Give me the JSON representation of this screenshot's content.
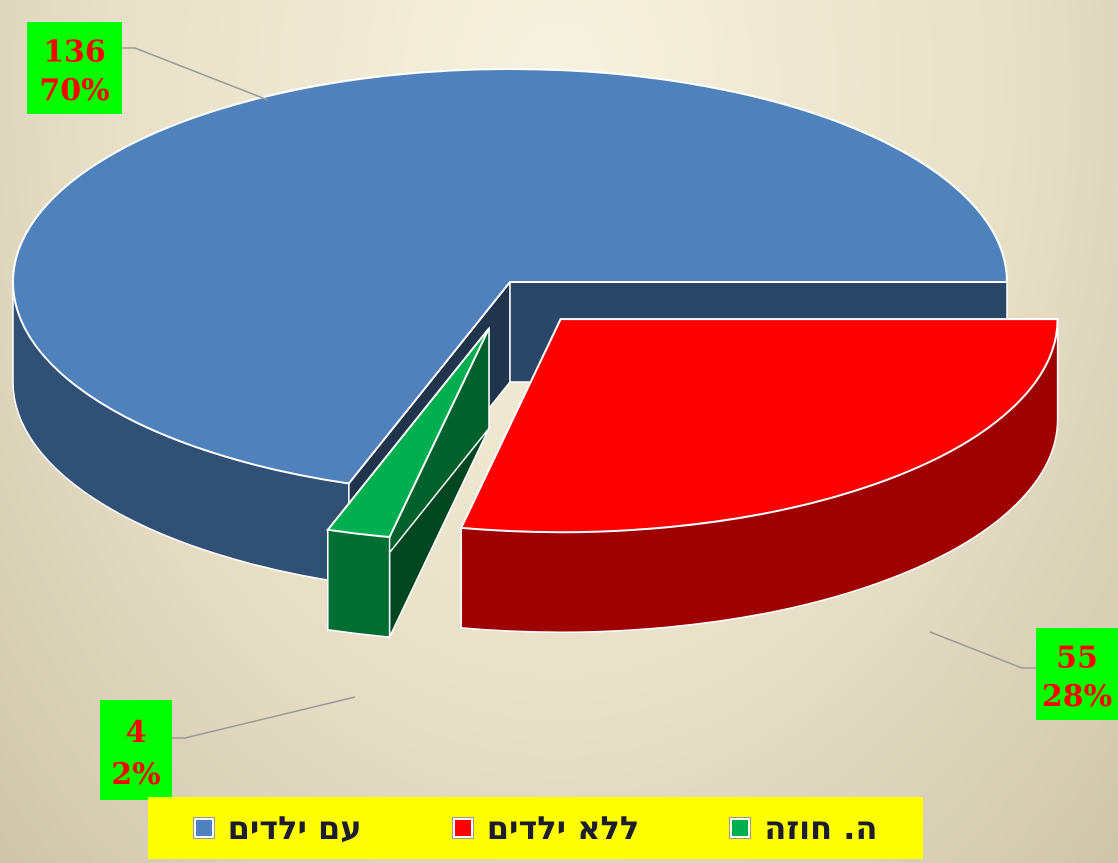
{
  "chart_data": {
    "type": "pie3d",
    "categories": [
      "עם ילדים",
      "ללא ילדים",
      "ה. חוזה"
    ],
    "values": [
      136,
      55,
      4
    ],
    "percent_labels": [
      "70%",
      "28%",
      "2%"
    ],
    "colors": [
      "#4f81bd",
      "#ff0000",
      "#00b050"
    ],
    "legend": "bottom"
  }
}
